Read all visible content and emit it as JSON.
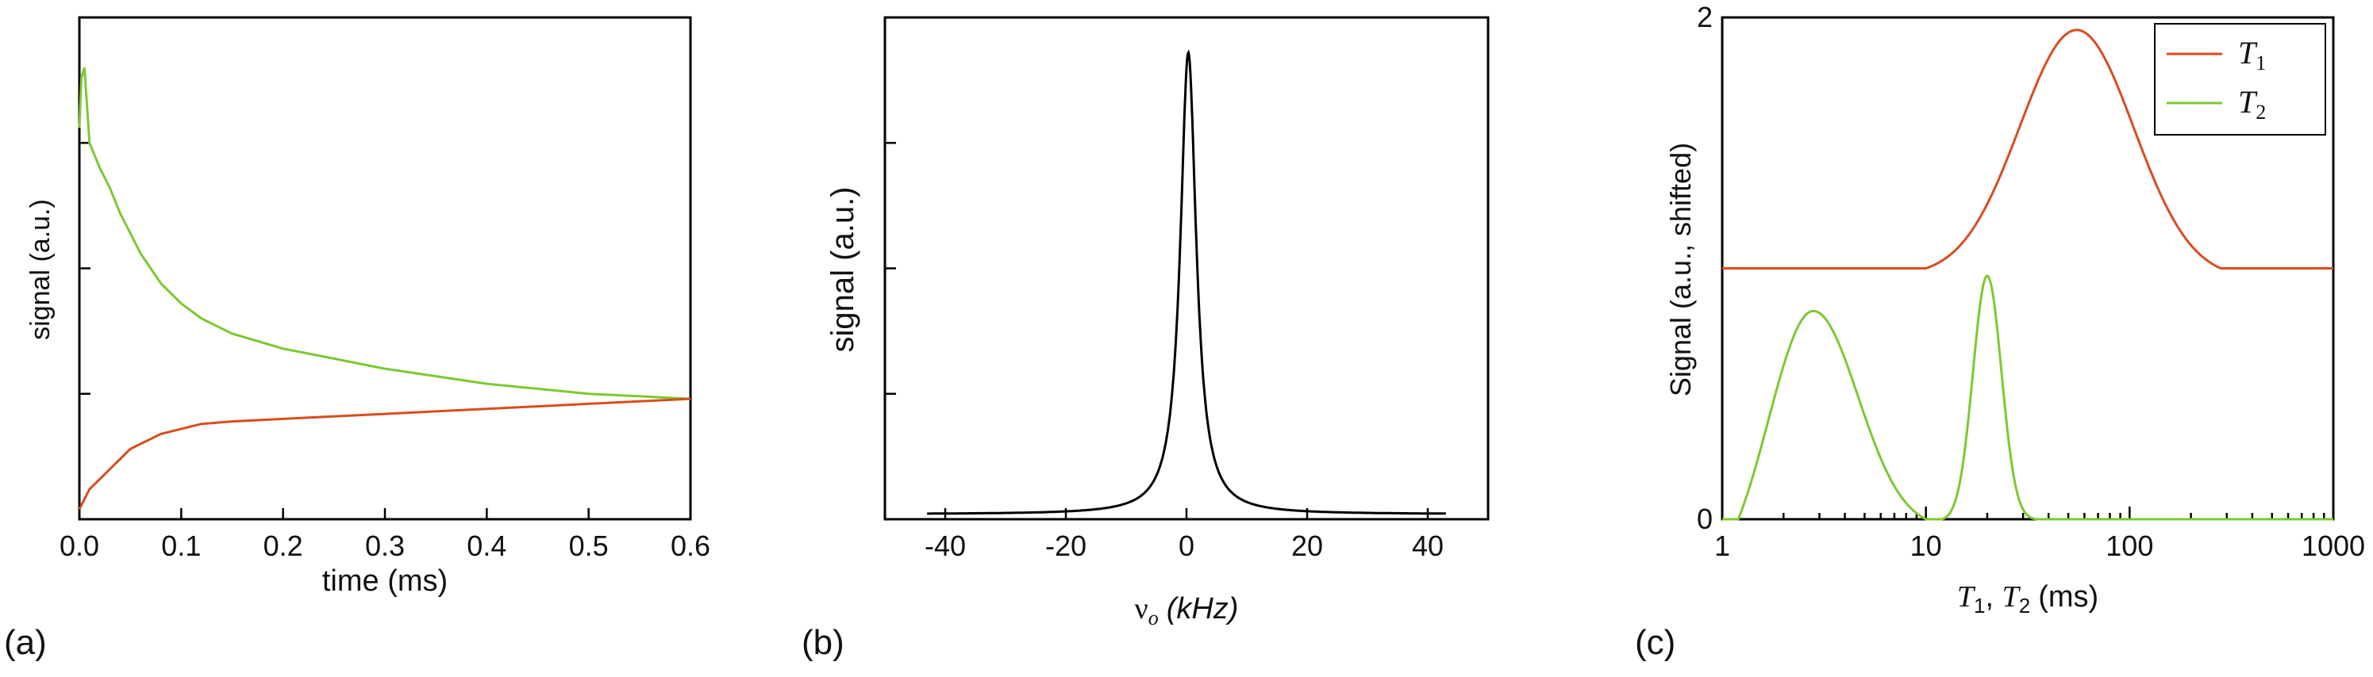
{
  "colors": {
    "t1": "#d84d1f",
    "t2": "#7dc832",
    "black": "#000000"
  },
  "chart_data": [
    {
      "panel": "(a)",
      "type": "line",
      "xlabel": "time (ms)",
      "ylabel": "signal (a.u.)",
      "xlim": [
        0.0,
        0.6
      ],
      "ylim": [
        0,
        1
      ],
      "xticks": [
        "0.0",
        "0.1",
        "0.2",
        "0.3",
        "0.4",
        "0.5",
        "0.6"
      ],
      "yticks_labeled": false,
      "grid": false,
      "series": [
        {
          "color": "#7dc832",
          "x": [
            0.0,
            0.002,
            0.005,
            0.01,
            0.02,
            0.03,
            0.04,
            0.05,
            0.06,
            0.08,
            0.1,
            0.12,
            0.15,
            0.2,
            0.25,
            0.3,
            0.35,
            0.4,
            0.45,
            0.5,
            0.55,
            0.6
          ],
          "y": [
            0.78,
            0.88,
            0.9,
            0.75,
            0.7,
            0.66,
            0.61,
            0.57,
            0.53,
            0.47,
            0.43,
            0.4,
            0.37,
            0.34,
            0.32,
            0.3,
            0.285,
            0.27,
            0.26,
            0.25,
            0.245,
            0.24
          ]
        },
        {
          "color": "#d84d1f",
          "x": [
            0.0,
            0.005,
            0.01,
            0.02,
            0.03,
            0.04,
            0.05,
            0.06,
            0.08,
            0.1,
            0.12,
            0.15,
            0.2,
            0.25,
            0.3,
            0.35,
            0.4,
            0.45,
            0.5,
            0.55,
            0.6
          ],
          "y": [
            0.02,
            0.04,
            0.06,
            0.08,
            0.1,
            0.12,
            0.14,
            0.15,
            0.17,
            0.18,
            0.19,
            0.195,
            0.2,
            0.205,
            0.21,
            0.215,
            0.22,
            0.225,
            0.23,
            0.235,
            0.24
          ]
        }
      ]
    },
    {
      "panel": "(b)",
      "type": "line",
      "xlabel_main": "ν",
      "xlabel_sub": "o",
      "xlabel_unit": "(kHz)",
      "ylabel": "signal (a.u.)",
      "xlim": [
        -50,
        50
      ],
      "ylim": [
        0,
        1
      ],
      "xticks": [
        "-40",
        "-20",
        "0",
        "20",
        "40"
      ],
      "xtick_values": [
        -40,
        -20,
        0,
        20,
        40
      ],
      "yticks_labeled": false,
      "grid": false,
      "series": [
        {
          "color": "#000000",
          "shape": "lorentzian",
          "center": 0.3,
          "hwhm": 1.6,
          "peak": 0.93,
          "baseline": 0.01,
          "xrange": [
            -43,
            43
          ]
        }
      ]
    },
    {
      "panel": "(c)",
      "type": "line",
      "xscale": "log",
      "xlabel_a": "T",
      "xlabel_a_sub": "1",
      "xlabel_b": "T",
      "xlabel_b_sub": "2",
      "xlabel_unit": "(ms)",
      "ylabel": "Signal (a.u., shifted)",
      "xlim": [
        1,
        1000
      ],
      "ylim": [
        0,
        2
      ],
      "xticks": [
        "1",
        "10",
        "100",
        "1000"
      ],
      "xtick_values": [
        1,
        10,
        100,
        1000
      ],
      "yticks": [
        "0",
        "2"
      ],
      "ytick_values": [
        0,
        2
      ],
      "grid": false,
      "legend_position": "top-right",
      "legend": [
        {
          "label": "T",
          "sub": "1",
          "color": "#d84d1f"
        },
        {
          "label": "T",
          "sub": "2",
          "color": "#7dc832"
        }
      ],
      "series": [
        {
          "color": "#d84d1f",
          "shape": "gaussian-log",
          "baseline": 1.0,
          "components": [
            {
              "center": 55,
              "width_decades": 0.28,
              "amplitude": 0.95,
              "cutoff": [
                10,
                280
              ]
            }
          ]
        },
        {
          "color": "#7dc832",
          "shape": "gaussian-log",
          "baseline": 0.0,
          "components": [
            {
              "center": 2.8,
              "width_decades": 0.22,
              "amplitude": 0.83,
              "cutoff": [
                1.2,
                10
              ]
            },
            {
              "center": 20,
              "width_decades": 0.07,
              "amplitude": 0.97,
              "cutoff": [
                12,
                35
              ]
            }
          ]
        }
      ]
    }
  ]
}
